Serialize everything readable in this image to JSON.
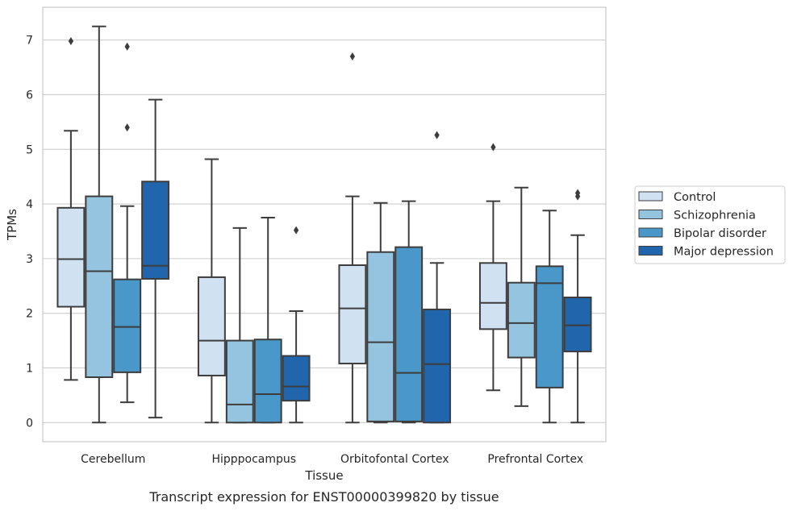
{
  "chart_data": {
    "type": "box",
    "caption": "Transcript expression for ENST00000399820 by tissue",
    "xlabel": "Tissue",
    "ylabel": "TPMs",
    "ylim": [
      -0.35,
      7.6
    ],
    "yticks": [
      0,
      1,
      2,
      3,
      4,
      5,
      6,
      7
    ],
    "grid": true,
    "legend_position": "right",
    "categories": [
      "Cerebellum",
      "Hipppocampus",
      "Orbitofontal Cortex",
      "Prefrontal Cortex"
    ],
    "series": [
      {
        "name": "Control",
        "color": "#d0e1f2",
        "boxes": [
          {
            "whisker_low": 0.78,
            "q1": 2.12,
            "median": 2.99,
            "q3": 3.93,
            "whisker_high": 5.34,
            "outliers": [
              6.98
            ]
          },
          {
            "whisker_low": 0.0,
            "q1": 0.86,
            "median": 1.5,
            "q3": 2.66,
            "whisker_high": 4.82,
            "outliers": []
          },
          {
            "whisker_low": 0.0,
            "q1": 1.08,
            "median": 2.09,
            "q3": 2.88,
            "whisker_high": 4.14,
            "outliers": [
              6.7
            ]
          },
          {
            "whisker_low": 0.59,
            "q1": 1.71,
            "median": 2.19,
            "q3": 2.92,
            "whisker_high": 4.05,
            "outliers": [
              5.04
            ]
          }
        ]
      },
      {
        "name": "Schizophrenia",
        "color": "#94c4df",
        "boxes": [
          {
            "whisker_low": 0.0,
            "q1": 0.83,
            "median": 2.77,
            "q3": 4.14,
            "whisker_high": 7.25,
            "outliers": []
          },
          {
            "whisker_low": 0.0,
            "q1": 0.0,
            "median": 0.33,
            "q3": 1.5,
            "whisker_high": 3.56,
            "outliers": []
          },
          {
            "whisker_low": 0.0,
            "q1": 0.02,
            "median": 1.47,
            "q3": 3.12,
            "whisker_high": 4.02,
            "outliers": []
          },
          {
            "whisker_low": 0.3,
            "q1": 1.19,
            "median": 1.82,
            "q3": 2.56,
            "whisker_high": 4.3,
            "outliers": []
          }
        ]
      },
      {
        "name": "Bipolar disorder",
        "color": "#4a98c9",
        "boxes": [
          {
            "whisker_low": 0.37,
            "q1": 0.92,
            "median": 1.75,
            "q3": 2.62,
            "whisker_high": 3.96,
            "outliers": [
              5.4,
              6.88
            ]
          },
          {
            "whisker_low": 0.0,
            "q1": 0.0,
            "median": 0.52,
            "q3": 1.52,
            "whisker_high": 3.75,
            "outliers": []
          },
          {
            "whisker_low": 0.0,
            "q1": 0.02,
            "median": 0.91,
            "q3": 3.21,
            "whisker_high": 4.05,
            "outliers": []
          },
          {
            "whisker_low": 0.0,
            "q1": 0.64,
            "median": 2.55,
            "q3": 2.86,
            "whisker_high": 3.88,
            "outliers": []
          }
        ]
      },
      {
        "name": "Major depression",
        "color": "#2166ac",
        "boxes": [
          {
            "whisker_low": 0.09,
            "q1": 2.63,
            "median": 2.87,
            "q3": 4.41,
            "whisker_high": 5.91,
            "outliers": []
          },
          {
            "whisker_low": 0.0,
            "q1": 0.4,
            "median": 0.66,
            "q3": 1.22,
            "whisker_high": 2.04,
            "outliers": [
              3.52
            ]
          },
          {
            "whisker_low": 0.0,
            "q1": 0.0,
            "median": 1.07,
            "q3": 2.07,
            "whisker_high": 2.92,
            "outliers": [
              5.26
            ]
          },
          {
            "whisker_low": 0.0,
            "q1": 1.3,
            "median": 1.78,
            "q3": 2.29,
            "whisker_high": 3.43,
            "outliers": [
              4.14,
              4.2
            ]
          }
        ]
      }
    ]
  }
}
